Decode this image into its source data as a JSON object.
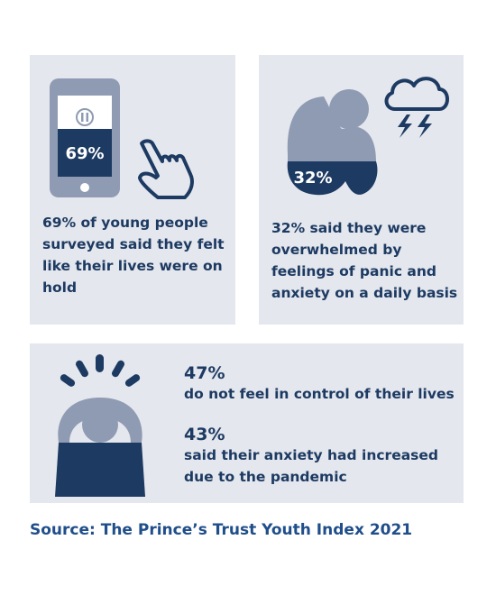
{
  "panel_a": {
    "phone_percent_label": "69%",
    "text": "69% of young people surveyed said they felt like their lives were on hold",
    "icons": [
      "phone-icon",
      "pause-icon",
      "pointing-hand-icon"
    ]
  },
  "panel_b": {
    "person_percent_label": "32%",
    "text": "32% said they were overwhelmed by feelings of panic and anxiety on a daily basis",
    "icons": [
      "hunched-person-icon",
      "storm-cloud-icon"
    ]
  },
  "panel_c": {
    "stat1_value": "47%",
    "stat1_text": "do not feel in control of their lives",
    "stat2_value": "43%",
    "stat2_text": "said their anxiety had increased due to the pandemic",
    "icons": [
      "stressed-person-icon"
    ]
  },
  "source": "Source: The Prince’s Trust Youth Index 2021",
  "colors": {
    "navy": "#1d3a62",
    "grey_blue": "#8f9bb3",
    "panel_bg": "#e4e7ed",
    "source_blue": "#1f4e8a"
  }
}
